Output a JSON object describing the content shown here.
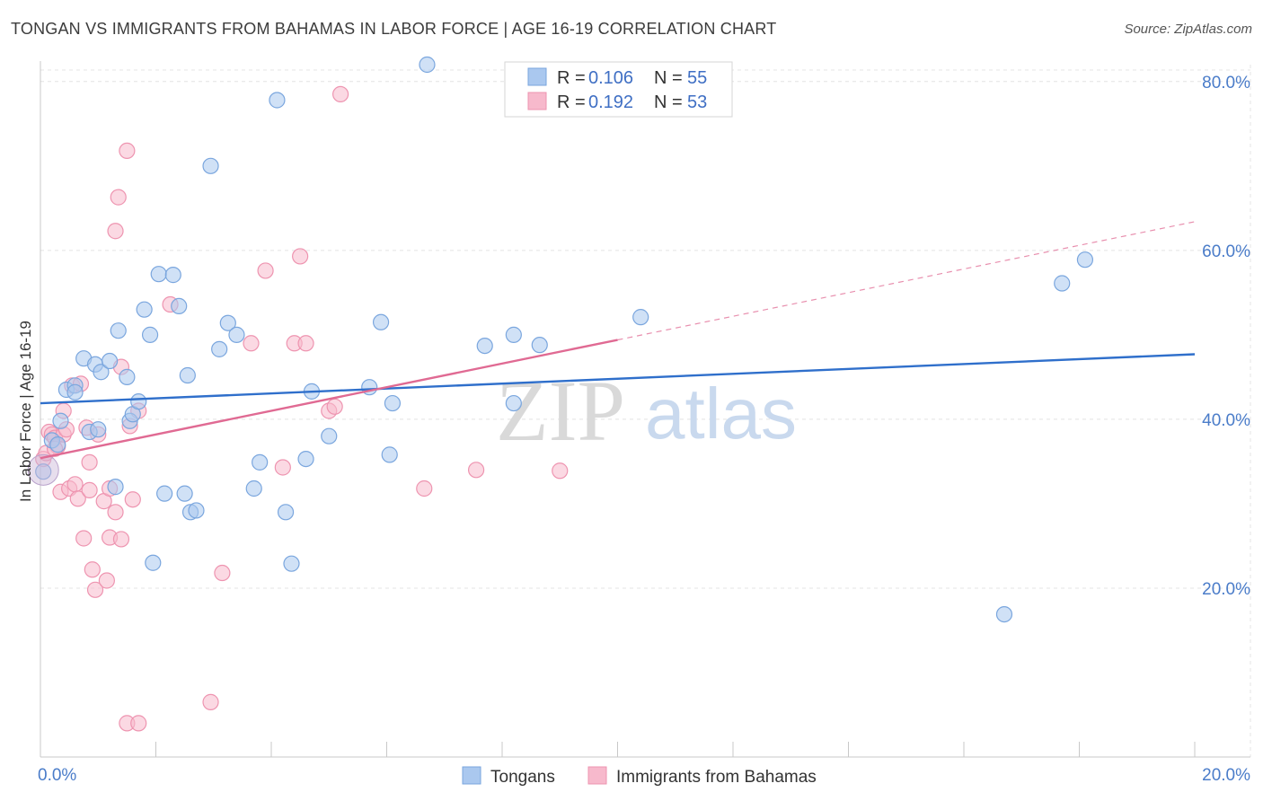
{
  "header": {
    "title": "TONGAN VS IMMIGRANTS FROM BAHAMAS IN LABOR FORCE | AGE 16-19 CORRELATION CHART",
    "source": "Source: ZipAtlas.com"
  },
  "watermark": {
    "zip": "ZIP",
    "atlas": "atlas"
  },
  "legend_box": {
    "rows": [
      {
        "r_label": "R =",
        "r_value": "0.106",
        "n_label": "N =",
        "n_value": "55"
      },
      {
        "r_label": "R =",
        "r_value": "0.192",
        "n_label": "N =",
        "n_value": "53"
      }
    ]
  },
  "colors": {
    "tongans_fill": "#aac8ef",
    "tongans_stroke": "#7aa6de",
    "tongans_line": "#2f6fcb",
    "bahamas_fill": "#f7b9cc",
    "bahamas_stroke": "#ee94b0",
    "bahamas_line": "#e06a93",
    "grid": "#e4e4e4",
    "tick_label": "#4a7cc9"
  },
  "chart_data": {
    "type": "scatter",
    "title": "TONGAN VS IMMIGRANTS FROM BAHAMAS IN LABOR FORCE | AGE 16-19 CORRELATION CHART",
    "xlabel": "",
    "ylabel": "In Labor Force | Age 16-19",
    "xlim": [
      0,
      20
    ],
    "ylim": [
      0,
      82
    ],
    "x_tick_labels": [
      {
        "value": 0,
        "label": "0.0%"
      },
      {
        "value": 20,
        "label": "20.0%"
      }
    ],
    "x_minor_ticks": [
      2,
      4,
      6,
      8,
      10,
      12,
      14,
      16,
      18,
      20
    ],
    "y_ticks": [
      {
        "value": 20,
        "label": "20.0%"
      },
      {
        "value": 40,
        "label": "40.0%"
      },
      {
        "value": 60,
        "label": "60.0%"
      },
      {
        "value": 80,
        "label": "80.0%"
      }
    ],
    "grid": true,
    "legend": "top-center and bottom",
    "series": [
      {
        "name": "Tongans",
        "R": 0.106,
        "N": 55,
        "trend": {
          "x0": 0,
          "y0": 41.9,
          "x1": 20,
          "y1": 47.7
        },
        "points": [
          [
            0.05,
            33.8
          ],
          [
            0.2,
            37.5
          ],
          [
            0.3,
            37.0
          ],
          [
            0.35,
            39.8
          ],
          [
            0.45,
            43.5
          ],
          [
            0.6,
            44.0
          ],
          [
            0.6,
            43.2
          ],
          [
            0.75,
            47.2
          ],
          [
            0.85,
            38.5
          ],
          [
            0.95,
            46.5
          ],
          [
            1.0,
            38.8
          ],
          [
            1.05,
            45.6
          ],
          [
            1.2,
            46.9
          ],
          [
            1.3,
            32.0
          ],
          [
            1.35,
            50.5
          ],
          [
            1.5,
            45.0
          ],
          [
            1.55,
            39.8
          ],
          [
            1.6,
            40.6
          ],
          [
            1.7,
            42.1
          ],
          [
            1.8,
            53.0
          ],
          [
            1.9,
            50.0
          ],
          [
            1.95,
            23.0
          ],
          [
            2.05,
            57.2
          ],
          [
            2.15,
            31.2
          ],
          [
            2.3,
            57.1
          ],
          [
            2.4,
            53.4
          ],
          [
            2.5,
            31.2
          ],
          [
            2.55,
            45.2
          ],
          [
            2.6,
            29.0
          ],
          [
            2.7,
            29.2
          ],
          [
            2.95,
            70.0
          ],
          [
            3.1,
            48.3
          ],
          [
            3.25,
            51.4
          ],
          [
            3.4,
            50.0
          ],
          [
            3.7,
            31.8
          ],
          [
            3.8,
            34.9
          ],
          [
            4.1,
            77.8
          ],
          [
            4.25,
            29.0
          ],
          [
            4.35,
            22.9
          ],
          [
            4.6,
            35.3
          ],
          [
            4.7,
            43.3
          ],
          [
            5.0,
            38.0
          ],
          [
            5.7,
            43.8
          ],
          [
            5.9,
            51.5
          ],
          [
            6.05,
            35.8
          ],
          [
            6.1,
            41.9
          ],
          [
            6.7,
            82.0
          ],
          [
            7.7,
            48.7
          ],
          [
            8.2,
            50.0
          ],
          [
            8.2,
            41.9
          ],
          [
            8.65,
            48.8
          ],
          [
            10.4,
            52.1
          ],
          [
            16.7,
            16.9
          ],
          [
            17.7,
            56.1
          ],
          [
            18.1,
            58.9
          ]
        ]
      },
      {
        "name": "Immigrants from Bahamas",
        "R": 0.192,
        "N": 53,
        "trend": {
          "x0": 0,
          "y0": 35.4,
          "x1": 10.0,
          "y1": 49.4
        },
        "trend_extension": {
          "x0": 10.0,
          "y0": 49.4,
          "x1": 20,
          "y1": 63.4
        },
        "points": [
          [
            0.05,
            35.3
          ],
          [
            0.1,
            36.0
          ],
          [
            0.15,
            38.5
          ],
          [
            0.2,
            38.2
          ],
          [
            0.25,
            37.8
          ],
          [
            0.3,
            36.8
          ],
          [
            0.35,
            31.4
          ],
          [
            0.4,
            38.2
          ],
          [
            0.4,
            41.0
          ],
          [
            0.5,
            31.8
          ],
          [
            0.55,
            44.0
          ],
          [
            0.6,
            32.3
          ],
          [
            0.65,
            30.6
          ],
          [
            0.7,
            44.2
          ],
          [
            0.75,
            25.9
          ],
          [
            0.8,
            39.0
          ],
          [
            0.85,
            31.6
          ],
          [
            0.85,
            34.9
          ],
          [
            0.9,
            22.2
          ],
          [
            0.95,
            19.8
          ],
          [
            1.0,
            38.2
          ],
          [
            1.1,
            30.3
          ],
          [
            1.15,
            20.9
          ],
          [
            1.2,
            26.0
          ],
          [
            1.2,
            31.8
          ],
          [
            1.3,
            29.0
          ],
          [
            1.3,
            62.3
          ],
          [
            1.4,
            46.2
          ],
          [
            1.4,
            25.8
          ],
          [
            1.35,
            66.3
          ],
          [
            1.5,
            71.8
          ],
          [
            1.5,
            4.0
          ],
          [
            1.55,
            39.2
          ],
          [
            1.6,
            30.5
          ],
          [
            1.7,
            41.0
          ],
          [
            1.7,
            4.0
          ],
          [
            2.25,
            53.6
          ],
          [
            2.95,
            6.5
          ],
          [
            3.15,
            21.8
          ],
          [
            3.65,
            49.0
          ],
          [
            3.9,
            57.6
          ],
          [
            4.2,
            34.3
          ],
          [
            4.4,
            49.0
          ],
          [
            4.5,
            59.3
          ],
          [
            4.6,
            49.0
          ],
          [
            5.0,
            41.0
          ],
          [
            5.1,
            41.5
          ],
          [
            5.2,
            78.5
          ],
          [
            6.65,
            31.8
          ],
          [
            7.55,
            34.0
          ],
          [
            9.0,
            33.9
          ],
          [
            0.25,
            36.5
          ],
          [
            0.45,
            38.8
          ]
        ]
      }
    ]
  }
}
